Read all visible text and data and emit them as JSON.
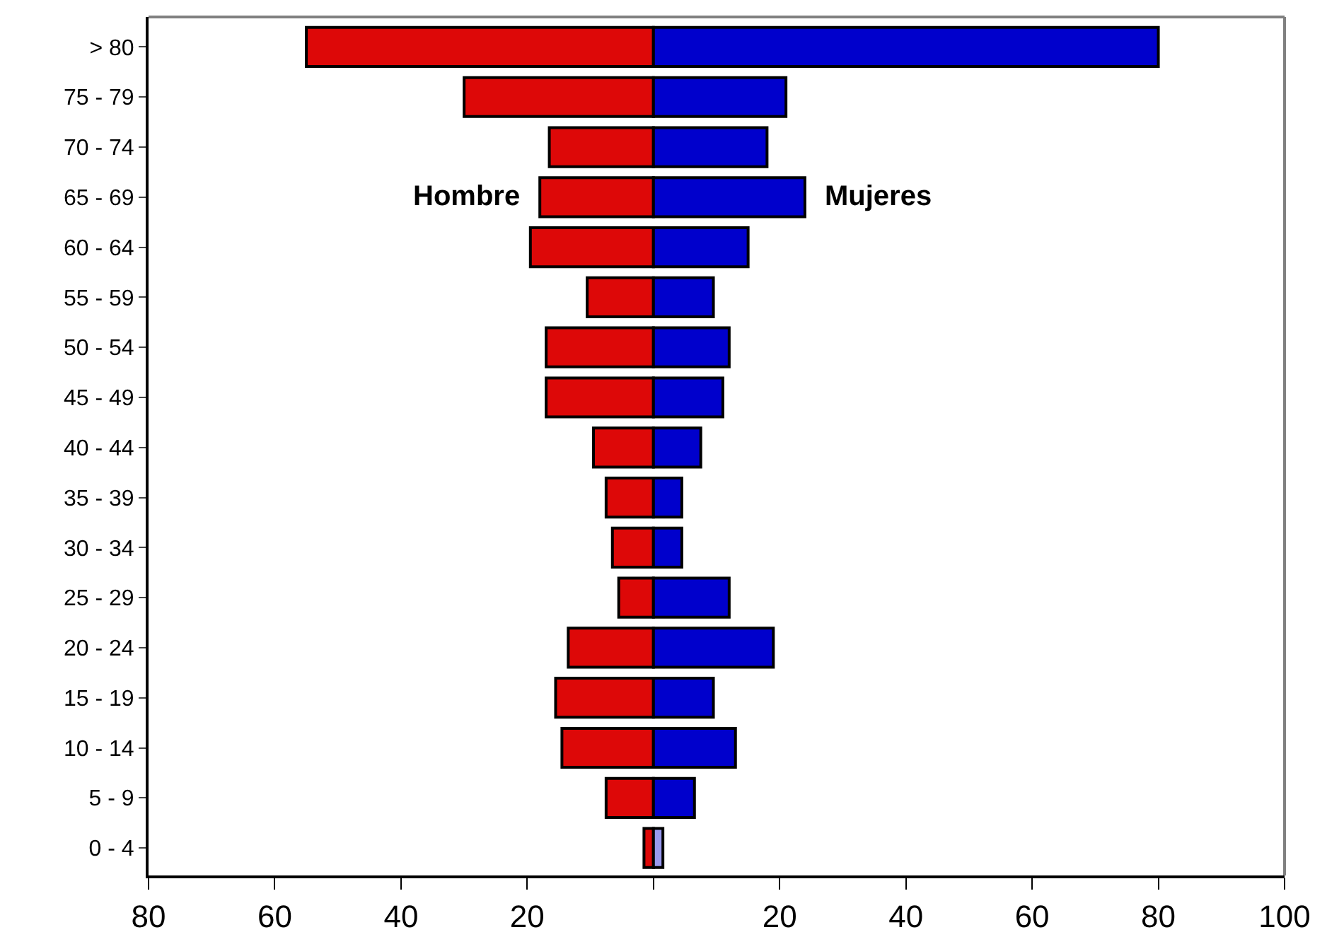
{
  "chart_data": {
    "type": "bar",
    "orientation": "horizontal",
    "categories": [
      "> 80",
      "75 - 79",
      "70 - 74",
      "65 - 69",
      "60 - 64",
      "55 - 59",
      "50 - 54",
      "45 - 49",
      "40 - 44",
      "35 - 39",
      "30 - 34",
      "25 - 29",
      "20 - 24",
      "15 - 19",
      "10 - 14",
      "5 - 9",
      "0 - 4"
    ],
    "series": [
      {
        "name": "Hombre",
        "color": "#dd0808",
        "values": [
          -55,
          -30,
          -16.5,
          -18,
          -19.5,
          -10.5,
          -17,
          -17,
          -9.5,
          -7.5,
          -6.5,
          -5.5,
          -13.5,
          -15.5,
          -14.5,
          -7.5,
          -1.5
        ]
      },
      {
        "name": "Mujeres",
        "color": "#0000cc",
        "colors": [
          "#0000cc",
          "#0000cc",
          "#0000cc",
          "#0000cc",
          "#0000cc",
          "#0000cc",
          "#0000cc",
          "#0000cc",
          "#0000cc",
          "#0000cc",
          "#0000cc",
          "#0000cc",
          "#0000cc",
          "#0000cc",
          "#0000cc",
          "#0000cc",
          "#9999ee"
        ],
        "values": [
          80,
          21,
          18,
          24,
          15,
          9.5,
          12,
          11,
          7.5,
          4.5,
          4.5,
          12,
          19,
          9.5,
          13,
          6.5,
          1.5
        ]
      }
    ],
    "xlim": [
      -80,
      100
    ],
    "xticks": [
      {
        "value": -80,
        "label": "80"
      },
      {
        "value": -60,
        "label": "60"
      },
      {
        "value": -40,
        "label": "40"
      },
      {
        "value": -20,
        "label": "20"
      },
      {
        "value": 0,
        "label": null
      },
      20,
      40,
      60,
      80,
      100
    ],
    "stacked": true,
    "legend": false
  }
}
